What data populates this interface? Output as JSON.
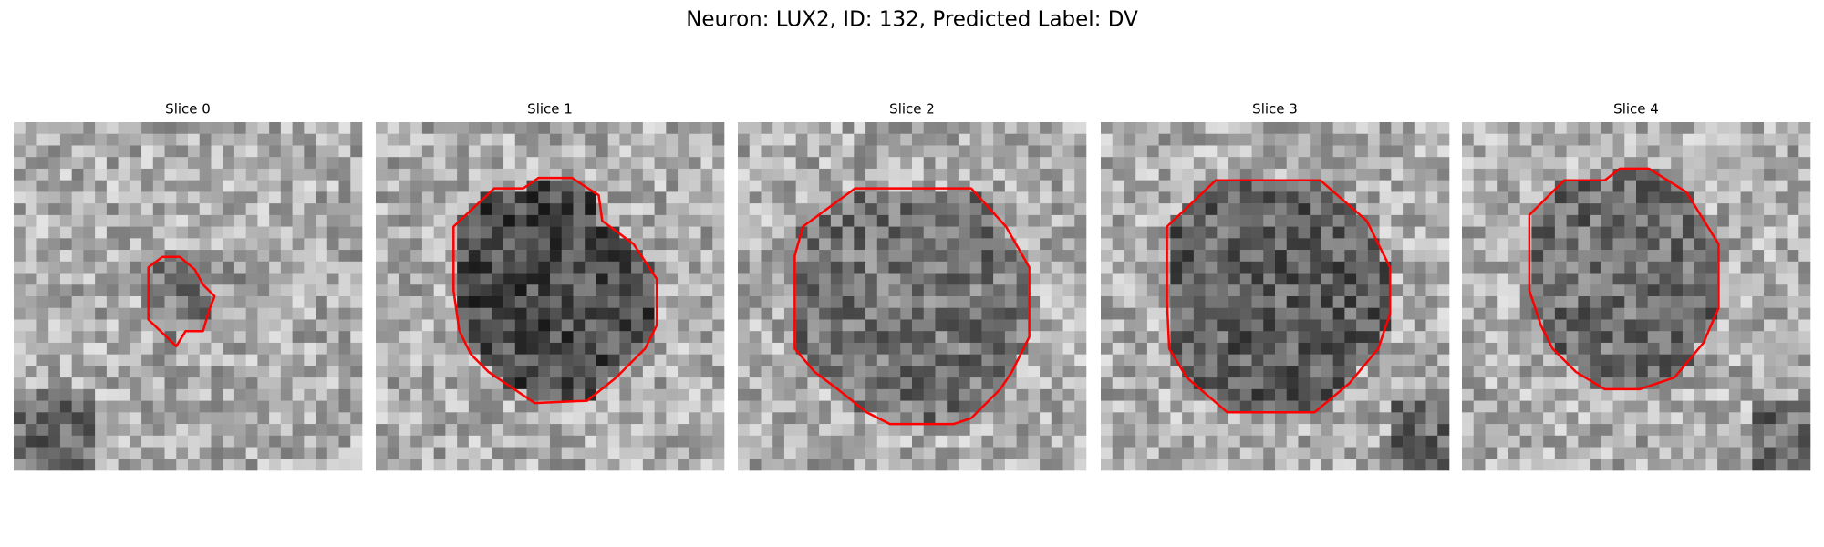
{
  "figure": {
    "title": "Neuron: LUX2, ID: 132, Predicted Label: DV",
    "panels": [
      {
        "title": "Slice 0"
      },
      {
        "title": "Slice 1"
      },
      {
        "title": "Slice 2"
      },
      {
        "title": "Slice 3"
      },
      {
        "title": "Slice 4"
      }
    ]
  }
}
